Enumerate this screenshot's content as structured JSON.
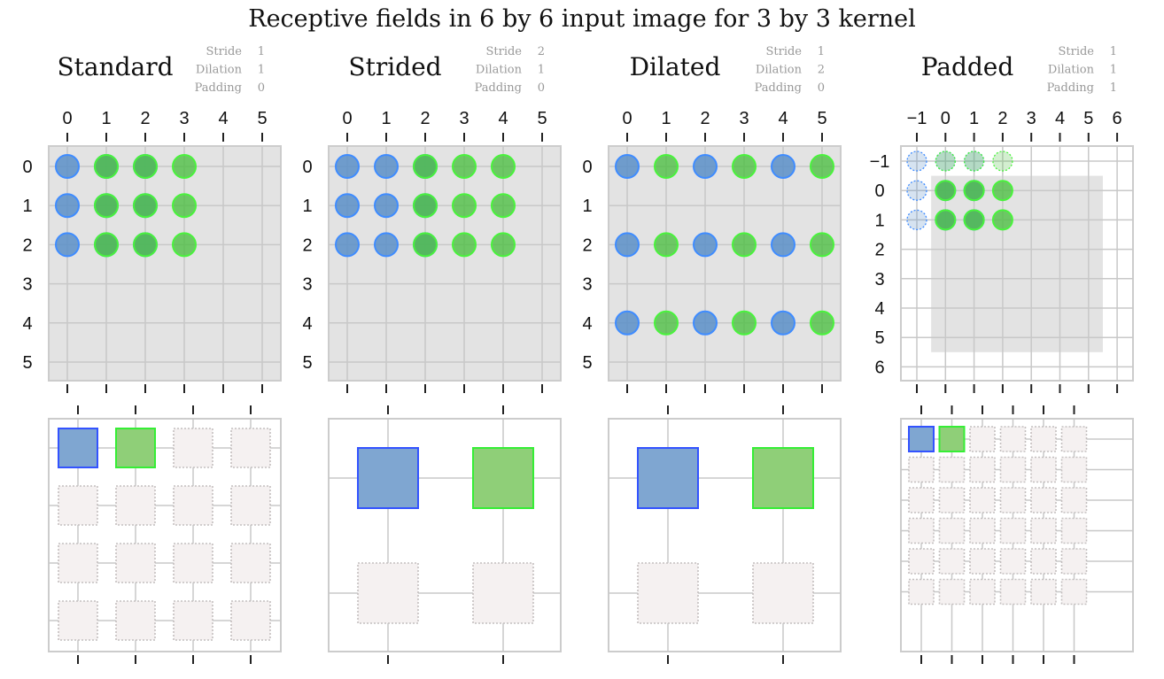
{
  "title": "Receptive fields in 6 by 6 input image for 3 by 3 kernel",
  "param_labels": [
    "Stride",
    "Dilation",
    "Padding"
  ],
  "colors": {
    "panel_bg": "#e3e3e3",
    "frame": "#cccccc",
    "grid": "#c8c8c8",
    "blue_fill": "#5b8fc8",
    "blue_edge": "#3f8cff",
    "green_fill": "#4fbf45",
    "green_edge": "#49f33c",
    "out_blue_fill": "#7fa6d1",
    "out_blue_edge": "#3353ff",
    "out_green_fill": "#8fcf78",
    "out_green_edge": "#35ee35",
    "empty_fill": "#f5f1f1",
    "empty_edge": "#c4bfbf",
    "param_text": "#999999"
  },
  "panels": [
    {
      "name": "Standard",
      "params": [
        "1",
        "1",
        "0"
      ],
      "ticks": [
        "0",
        "1",
        "2",
        "3",
        "4",
        "5"
      ],
      "ytick_labels": [
        "0",
        "1",
        "2",
        "3",
        "4",
        "5"
      ],
      "blue_points": [
        [
          0,
          0
        ],
        [
          1,
          0
        ],
        [
          2,
          0
        ],
        [
          0,
          1
        ],
        [
          1,
          1
        ],
        [
          2,
          1
        ],
        [
          0,
          2
        ],
        [
          1,
          2
        ],
        [
          2,
          2
        ]
      ],
      "green_points": [
        [
          1,
          0
        ],
        [
          2,
          0
        ],
        [
          3,
          0
        ],
        [
          1,
          1
        ],
        [
          2,
          1
        ],
        [
          3,
          1
        ],
        [
          1,
          2
        ],
        [
          2,
          2
        ],
        [
          3,
          2
        ]
      ],
      "output_size": 4
    },
    {
      "name": "Strided",
      "params": [
        "2",
        "1",
        "0"
      ],
      "ticks": [
        "0",
        "1",
        "2",
        "3",
        "4",
        "5"
      ],
      "ytick_labels": [
        "0",
        "1",
        "2",
        "3",
        "4",
        "5"
      ],
      "blue_points": [
        [
          0,
          0
        ],
        [
          1,
          0
        ],
        [
          2,
          0
        ],
        [
          0,
          1
        ],
        [
          1,
          1
        ],
        [
          2,
          1
        ],
        [
          0,
          2
        ],
        [
          1,
          2
        ],
        [
          2,
          2
        ]
      ],
      "green_points": [
        [
          2,
          0
        ],
        [
          3,
          0
        ],
        [
          4,
          0
        ],
        [
          2,
          1
        ],
        [
          3,
          1
        ],
        [
          4,
          1
        ],
        [
          2,
          2
        ],
        [
          3,
          2
        ],
        [
          4,
          2
        ]
      ],
      "output_size": 2
    },
    {
      "name": "Dilated",
      "params": [
        "1",
        "2",
        "0"
      ],
      "ticks": [
        "0",
        "1",
        "2",
        "3",
        "4",
        "5"
      ],
      "ytick_labels": [
        "0",
        "1",
        "2",
        "3",
        "4",
        "5"
      ],
      "blue_points": [
        [
          0,
          0
        ],
        [
          2,
          0
        ],
        [
          4,
          0
        ],
        [
          0,
          2
        ],
        [
          2,
          2
        ],
        [
          4,
          2
        ],
        [
          0,
          4
        ],
        [
          2,
          4
        ],
        [
          4,
          4
        ]
      ],
      "green_points": [
        [
          1,
          0
        ],
        [
          3,
          0
        ],
        [
          5,
          0
        ],
        [
          1,
          2
        ],
        [
          3,
          2
        ],
        [
          5,
          2
        ],
        [
          1,
          4
        ],
        [
          3,
          4
        ],
        [
          5,
          4
        ]
      ],
      "output_size": 2
    },
    {
      "name": "Padded",
      "params": [
        "1",
        "1",
        "1"
      ],
      "ticks": [
        "−1",
        "0",
        "1",
        "2",
        "3",
        "4",
        "5",
        "6"
      ],
      "ytick_labels": [
        "−1",
        "0",
        "1",
        "2",
        "3",
        "4",
        "5",
        "6"
      ],
      "blue_points": [
        [
          -1,
          -1
        ],
        [
          0,
          -1
        ],
        [
          1,
          -1
        ],
        [
          -1,
          0
        ],
        [
          0,
          0
        ],
        [
          1,
          0
        ],
        [
          -1,
          1
        ],
        [
          0,
          1
        ],
        [
          1,
          1
        ]
      ],
      "green_points": [
        [
          0,
          -1
        ],
        [
          1,
          -1
        ],
        [
          2,
          -1
        ],
        [
          0,
          0
        ],
        [
          1,
          0
        ],
        [
          2,
          0
        ],
        [
          0,
          1
        ],
        [
          1,
          1
        ],
        [
          2,
          1
        ]
      ],
      "output_size": 6
    }
  ]
}
